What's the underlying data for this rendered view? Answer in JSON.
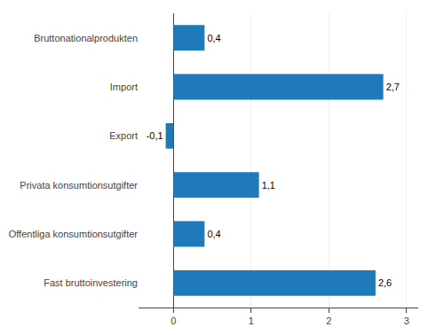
{
  "chart_data": {
    "type": "bar",
    "orientation": "horizontal",
    "categories": [
      "Fast bruttoinvestering",
      "Offentliga konsumtionsutgifter",
      "Privata konsumtionsutgifter",
      "Export",
      "Import",
      "Bruttonationalprodukten"
    ],
    "values": [
      2.6,
      0.4,
      1.1,
      -0.1,
      2.7,
      0.4
    ],
    "value_labels": [
      "2,6",
      "0,4",
      "1,1",
      "-0,1",
      "2,7",
      "0,4"
    ],
    "color": "#1e7ab8",
    "xlim": [
      -0.45,
      3.15
    ],
    "xticks": [
      0,
      1,
      2,
      3
    ],
    "grid": true,
    "data_labels": true
  }
}
